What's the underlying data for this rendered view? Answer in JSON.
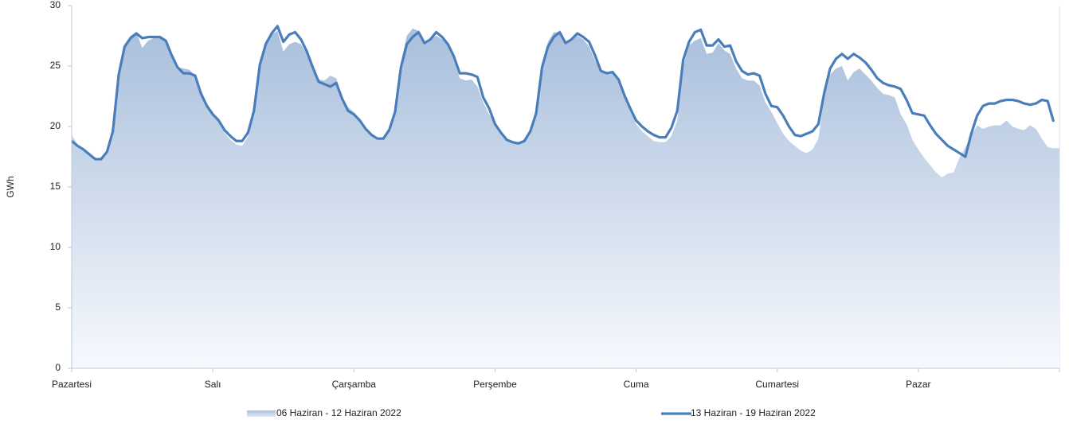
{
  "chart_data": {
    "type": "area-line",
    "y_label": "GWh",
    "ylim": [
      0,
      30
    ],
    "yticks": [
      0,
      5,
      10,
      15,
      20,
      25,
      30
    ],
    "categories": [
      "Pazartesi",
      null,
      null,
      null,
      null,
      null,
      null,
      null,
      null,
      null,
      null,
      null,
      null,
      null,
      null,
      null,
      null,
      null,
      null,
      null,
      null,
      null,
      null,
      null,
      "Salı",
      null,
      null,
      null,
      null,
      null,
      null,
      null,
      null,
      null,
      null,
      null,
      null,
      null,
      null,
      null,
      null,
      null,
      null,
      null,
      null,
      null,
      null,
      null,
      "Çarşamba",
      null,
      null,
      null,
      null,
      null,
      null,
      null,
      null,
      null,
      null,
      null,
      null,
      null,
      null,
      null,
      null,
      null,
      null,
      null,
      null,
      null,
      null,
      null,
      "Perşembe",
      null,
      null,
      null,
      null,
      null,
      null,
      null,
      null,
      null,
      null,
      null,
      null,
      null,
      null,
      null,
      null,
      null,
      null,
      null,
      null,
      null,
      null,
      null,
      "Cuma",
      null,
      null,
      null,
      null,
      null,
      null,
      null,
      null,
      null,
      null,
      null,
      null,
      null,
      null,
      null,
      null,
      null,
      null,
      null,
      null,
      null,
      null,
      null,
      "Cumartesi",
      null,
      null,
      null,
      null,
      null,
      null,
      null,
      null,
      null,
      null,
      null,
      null,
      null,
      null,
      null,
      null,
      null,
      null,
      null,
      null,
      null,
      null,
      null,
      "Pazar",
      null,
      null,
      null,
      null,
      null,
      null,
      null,
      null,
      null,
      null,
      null,
      null,
      null,
      null,
      null,
      null,
      null,
      null,
      null,
      null,
      null,
      null,
      null
    ],
    "series": [
      {
        "name": "06 Haziran - 12 Haziran 2022",
        "kind": "area",
        "color": "#a9bfdc",
        "values": [
          19.3,
          18.5,
          18.1,
          17.7,
          17.3,
          17.3,
          17.9,
          19.8,
          24.5,
          26.8,
          27.5,
          27.8,
          26.5,
          27.1,
          27.3,
          27.3,
          27.0,
          26.0,
          24.9,
          24.8,
          24.7,
          24.2,
          23.0,
          21.9,
          21.2,
          20.5,
          19.5,
          18.9,
          18.5,
          18.4,
          19.2,
          21.0,
          25.2,
          27.0,
          27.6,
          27.9,
          26.2,
          26.8,
          27.0,
          26.8,
          26.0,
          24.8,
          23.9,
          23.8,
          24.2,
          24.0,
          22.4,
          21.6,
          21.2,
          20.6,
          19.8,
          19.2,
          18.9,
          19.0,
          19.8,
          21.5,
          25.3,
          27.5,
          28.1,
          27.9,
          26.8,
          27.2,
          27.5,
          27.2,
          26.8,
          25.5,
          24.0,
          23.8,
          23.9,
          23.3,
          22.0,
          21.0,
          20.4,
          19.5,
          18.9,
          18.8,
          18.6,
          18.9,
          19.8,
          21.4,
          25.2,
          27.0,
          27.8,
          27.8,
          27.0,
          27.2,
          27.5,
          27.2,
          26.6,
          25.5,
          24.5,
          24.4,
          24.4,
          23.7,
          22.5,
          21.4,
          20.2,
          19.6,
          19.2,
          18.8,
          18.7,
          18.7,
          19.2,
          20.5,
          25.0,
          26.7,
          27.1,
          27.3,
          26.0,
          26.1,
          26.9,
          26.3,
          26.0,
          24.8,
          24.0,
          23.8,
          23.8,
          23.4,
          22.0,
          21.2,
          20.3,
          19.4,
          18.8,
          18.4,
          18.0,
          17.8,
          18.1,
          19.0,
          22.5,
          24.3,
          24.8,
          25.0,
          23.8,
          24.5,
          24.8,
          24.3,
          23.8,
          23.2,
          22.7,
          22.6,
          22.4,
          21.0,
          20.2,
          18.9,
          18.1,
          17.4,
          16.8,
          16.2,
          15.8,
          16.1,
          16.2,
          17.4,
          18.3,
          19.2,
          20.1,
          19.8,
          20.0,
          20.1,
          20.1,
          20.5,
          20.0,
          19.8,
          19.7,
          20.1,
          19.8,
          19.0,
          18.3,
          18.2
        ]
      },
      {
        "name": "13 Haziran - 19 Haziran 2022",
        "kind": "line",
        "color": "#4a7ebb",
        "values": [
          18.8,
          18.4,
          18.1,
          17.7,
          17.3,
          17.3,
          17.9,
          19.6,
          24.3,
          26.6,
          27.3,
          27.7,
          27.3,
          27.4,
          27.4,
          27.4,
          27.1,
          25.9,
          24.9,
          24.4,
          24.4,
          24.2,
          22.7,
          21.7,
          21.0,
          20.5,
          19.7,
          19.2,
          18.8,
          18.8,
          19.5,
          21.3,
          25.1,
          26.8,
          27.7,
          28.3,
          27.0,
          27.6,
          27.8,
          27.2,
          26.2,
          24.9,
          23.7,
          23.5,
          23.3,
          23.6,
          22.3,
          21.3,
          21.0,
          20.5,
          19.8,
          19.3,
          19.0,
          19.0,
          19.7,
          21.2,
          24.9,
          26.8,
          27.4,
          27.8,
          26.9,
          27.2,
          27.8,
          27.4,
          26.8,
          25.8,
          24.4,
          24.4,
          24.3,
          24.1,
          22.4,
          21.5,
          20.2,
          19.5,
          18.9,
          18.7,
          18.6,
          18.8,
          19.6,
          21.1,
          24.9,
          26.6,
          27.4,
          27.8,
          26.9,
          27.2,
          27.7,
          27.4,
          27.0,
          25.9,
          24.6,
          24.4,
          24.5,
          23.9,
          22.6,
          21.5,
          20.5,
          20.0,
          19.6,
          19.3,
          19.1,
          19.1,
          19.9,
          21.3,
          25.5,
          27.0,
          27.8,
          28.0,
          26.7,
          26.7,
          27.2,
          26.6,
          26.7,
          25.4,
          24.6,
          24.3,
          24.4,
          24.2,
          22.7,
          21.7,
          21.6,
          20.9,
          20.0,
          19.3,
          19.2,
          19.4,
          19.6,
          20.2,
          22.8,
          24.8,
          25.6,
          26.0,
          25.6,
          26.0,
          25.7,
          25.3,
          24.7,
          24.0,
          23.6,
          23.4,
          23.3,
          23.1,
          22.2,
          21.1,
          21.0,
          20.9,
          20.1,
          19.4,
          18.9,
          18.4,
          18.1,
          17.8,
          17.5,
          19.4,
          20.9,
          21.7,
          21.9,
          21.9,
          22.1,
          22.2,
          22.2,
          22.1,
          21.9,
          21.8,
          21.9,
          22.2,
          22.1,
          20.4
        ]
      }
    ]
  }
}
